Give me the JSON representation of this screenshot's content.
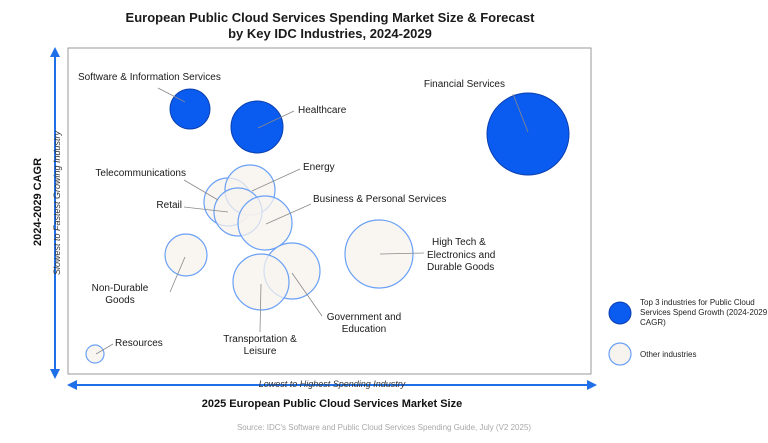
{
  "chart_data": {
    "type": "bubble",
    "title_line1": "European Public Cloud Services Spending Market Size & Forecast",
    "title_line2": "by Key IDC Industries, 2024-2029",
    "xlabel": "2025 European Public Cloud Services Market Size",
    "x_direction_label": "Lowest to Highest Spending Industry",
    "ylabel": "2024-2029 CAGR",
    "y_direction_label": "Slowest to Fastest Growing Industry",
    "legend": [
      {
        "name": "Top 3 industries for Public Cloud Services Spend Growth (2024-2029 CAGR)",
        "color": "#0a5bef"
      },
      {
        "name": "Other industries",
        "color": "#f7f3ee"
      }
    ],
    "source": "Source: IDC's Software and Public Cloud Services Spending Guide, July (V2 2025)",
    "bubbles": [
      {
        "label": "Software & Information Services",
        "top3": true
      },
      {
        "label": "Healthcare",
        "top3": true
      },
      {
        "label": "Financial Services",
        "top3": true
      },
      {
        "label": "Telecommunications",
        "top3": false
      },
      {
        "label": "Energy",
        "top3": false
      },
      {
        "label": "Retail",
        "top3": false
      },
      {
        "label": "Business & Personal Services",
        "top3": false
      },
      {
        "label": "High Tech & Electronics and Durable Goods",
        "top3": false
      },
      {
        "label": "Non-Durable Goods",
        "top3": false
      },
      {
        "label": "Government and Education",
        "top3": false
      },
      {
        "label": "Transportation & Leisure",
        "top3": false
      },
      {
        "label": "Resources",
        "top3": false
      }
    ]
  }
}
